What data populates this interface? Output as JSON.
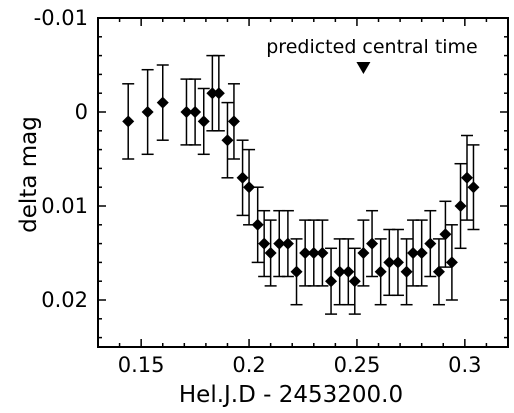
{
  "chart_data": {
    "type": "scatter",
    "xlabel": "Hel.J.D - 2453200.0",
    "ylabel": "delta mag",
    "xlim": [
      0.13,
      0.32
    ],
    "ylim": [
      0.025,
      -0.01
    ],
    "y_axis_inverted": true,
    "grid": false,
    "marker": "diamond",
    "color": "#000000",
    "xticks": [
      0.15,
      0.2,
      0.25,
      0.3
    ],
    "xtick_labels": [
      "0.15",
      "0.2",
      "0.25",
      "0.3"
    ],
    "yticks": [
      -0.01,
      0,
      0.01,
      0.02
    ],
    "ytick_labels": [
      "-0.01",
      "0",
      "0.01",
      "0.02"
    ],
    "annotation": {
      "text": "predicted central time",
      "marker": "down-triangle",
      "x": 0.253
    },
    "points": [
      {
        "x": 0.144,
        "y": 0.001,
        "err": 0.004
      },
      {
        "x": 0.153,
        "y": 0.0,
        "err": 0.0045
      },
      {
        "x": 0.16,
        "y": -0.001,
        "err": 0.004
      },
      {
        "x": 0.171,
        "y": 0.0,
        "err": 0.0035
      },
      {
        "x": 0.175,
        "y": 0.0,
        "err": 0.0035
      },
      {
        "x": 0.179,
        "y": 0.001,
        "err": 0.0035
      },
      {
        "x": 0.183,
        "y": -0.002,
        "err": 0.004
      },
      {
        "x": 0.186,
        "y": -0.002,
        "err": 0.004
      },
      {
        "x": 0.19,
        "y": 0.003,
        "err": 0.004
      },
      {
        "x": 0.193,
        "y": 0.001,
        "err": 0.004
      },
      {
        "x": 0.197,
        "y": 0.007,
        "err": 0.004
      },
      {
        "x": 0.2,
        "y": 0.008,
        "err": 0.004
      },
      {
        "x": 0.204,
        "y": 0.012,
        "err": 0.004
      },
      {
        "x": 0.207,
        "y": 0.014,
        "err": 0.0035
      },
      {
        "x": 0.21,
        "y": 0.015,
        "err": 0.0035
      },
      {
        "x": 0.214,
        "y": 0.014,
        "err": 0.0035
      },
      {
        "x": 0.218,
        "y": 0.014,
        "err": 0.0035
      },
      {
        "x": 0.222,
        "y": 0.017,
        "err": 0.0035
      },
      {
        "x": 0.226,
        "y": 0.015,
        "err": 0.0035
      },
      {
        "x": 0.23,
        "y": 0.015,
        "err": 0.0035
      },
      {
        "x": 0.234,
        "y": 0.015,
        "err": 0.0035
      },
      {
        "x": 0.238,
        "y": 0.018,
        "err": 0.0035
      },
      {
        "x": 0.242,
        "y": 0.017,
        "err": 0.0035
      },
      {
        "x": 0.246,
        "y": 0.017,
        "err": 0.0035
      },
      {
        "x": 0.249,
        "y": 0.018,
        "err": 0.0035
      },
      {
        "x": 0.253,
        "y": 0.015,
        "err": 0.0035
      },
      {
        "x": 0.257,
        "y": 0.014,
        "err": 0.0035
      },
      {
        "x": 0.261,
        "y": 0.017,
        "err": 0.0035
      },
      {
        "x": 0.265,
        "y": 0.016,
        "err": 0.0035
      },
      {
        "x": 0.269,
        "y": 0.016,
        "err": 0.0035
      },
      {
        "x": 0.273,
        "y": 0.017,
        "err": 0.0035
      },
      {
        "x": 0.276,
        "y": 0.015,
        "err": 0.0035
      },
      {
        "x": 0.28,
        "y": 0.015,
        "err": 0.0035
      },
      {
        "x": 0.284,
        "y": 0.014,
        "err": 0.0035
      },
      {
        "x": 0.288,
        "y": 0.017,
        "err": 0.0035
      },
      {
        "x": 0.291,
        "y": 0.013,
        "err": 0.0035
      },
      {
        "x": 0.294,
        "y": 0.016,
        "err": 0.004
      },
      {
        "x": 0.298,
        "y": 0.01,
        "err": 0.0045
      },
      {
        "x": 0.301,
        "y": 0.007,
        "err": 0.0045
      },
      {
        "x": 0.304,
        "y": 0.008,
        "err": 0.0045
      }
    ]
  }
}
